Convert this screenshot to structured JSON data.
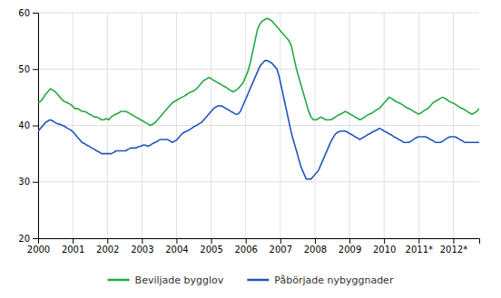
{
  "chart_data": {
    "type": "line",
    "x": [
      2000,
      2000.0704,
      2000.1409,
      2000.2113,
      2000.2818,
      2000.3522,
      2000.4227,
      2000.4931,
      2000.5635,
      2000.634,
      2000.7044,
      2000.7749,
      2000.8453,
      2000.9157,
      2000.9862,
      2001.0566,
      2001.1271,
      2001.1975,
      2001.268,
      2001.3384,
      2001.4088,
      2001.4793,
      2001.5497,
      2001.6202,
      2001.6906,
      2001.761,
      2001.8315,
      2001.9019,
      2001.9724,
      2002.0428,
      2002.1133,
      2002.1837,
      2002.2541,
      2002.3246,
      2002.395,
      2002.4655,
      2002.5359,
      2002.6064,
      2002.6768,
      2002.7472,
      2002.8177,
      2002.8881,
      2002.9586,
      2003.029,
      2003.0994,
      2003.1699,
      2003.2403,
      2003.3108,
      2003.3812,
      2003.4517,
      2003.5221,
      2003.5925,
      2003.663,
      2003.7334,
      2003.8039,
      2003.8743,
      2003.9448,
      2004.0152,
      2004.0856,
      2004.1561,
      2004.2265,
      2004.297,
      2004.3674,
      2004.4378,
      2004.5083,
      2004.5787,
      2004.6492,
      2004.7196,
      2004.7901,
      2004.8605,
      2004.9309,
      2005.0014,
      2005.0718,
      2005.1423,
      2005.2127,
      2005.2831,
      2005.3536,
      2005.424,
      2005.4945,
      2005.5649,
      2005.6354,
      2005.7058,
      2005.7762,
      2005.8467,
      2005.9171,
      2005.9876,
      2006.058,
      2006.1285,
      2006.1989,
      2006.2693,
      2006.3398,
      2006.4102,
      2006.4807,
      2006.5511,
      2006.6215,
      2006.692,
      2006.7624,
      2006.8329,
      2006.9033,
      2006.9738,
      2007.0442,
      2007.1146,
      2007.1851,
      2007.2555,
      2007.326,
      2007.3964,
      2007.4669,
      2007.5373,
      2007.6077,
      2007.6782,
      2007.7486,
      2007.8191,
      2007.8895,
      2007.9599,
      2008.0304,
      2008.1008,
      2008.1713,
      2008.2417,
      2008.3122,
      2008.3826,
      2008.453,
      2008.5235,
      2008.5939,
      2008.6644,
      2008.7348,
      2008.8052,
      2008.8757,
      2008.9461,
      2009.0166,
      2009.087,
      2009.1575,
      2009.2279,
      2009.2983,
      2009.3688,
      2009.4392,
      2009.5097,
      2009.5801,
      2009.6506,
      2009.721,
      2009.7914,
      2009.8619,
      2009.9323,
      2010.0028,
      2010.0732,
      2010.1436,
      2010.2141,
      2010.2845,
      2010.355,
      2010.4254,
      2010.4959,
      2010.5663,
      2010.6367,
      2010.7072,
      2010.7776,
      2010.8481,
      2010.9185,
      2010.989,
      2011.0594,
      2011.1298,
      2011.2003,
      2011.2707,
      2011.3412,
      2011.4116,
      2011.482,
      2011.5525,
      2011.6229,
      2011.6934,
      2011.7638,
      2011.8343,
      2011.9047,
      2011.9751,
      2012.0456,
      2012.116,
      2012.1865,
      2012.2569,
      2012.3273,
      2012.3978,
      2012.4682,
      2012.5387,
      2012.6091,
      2012.6796,
      2012.75
    ],
    "series": [
      {
        "name": "Beviljade bygglov",
        "color": "#22aa44",
        "values": [
          44.0,
          44.3,
          44.8,
          45.5,
          46.0,
          46.5,
          46.3,
          46.0,
          45.5,
          45.0,
          44.5,
          44.2,
          44.0,
          43.8,
          43.5,
          43.0,
          43.0,
          42.8,
          42.5,
          42.5,
          42.3,
          42.0,
          41.8,
          41.5,
          41.5,
          41.3,
          41.0,
          41.0,
          41.2,
          41.0,
          41.5,
          41.8,
          42.0,
          42.2,
          42.5,
          42.5,
          42.5,
          42.3,
          42.0,
          41.8,
          41.5,
          41.3,
          41.0,
          40.8,
          40.5,
          40.3,
          40.0,
          40.2,
          40.5,
          41.0,
          41.5,
          42.0,
          42.5,
          43.0,
          43.5,
          44.0,
          44.3,
          44.5,
          44.8,
          45.0,
          45.2,
          45.5,
          45.8,
          46.0,
          46.2,
          46.5,
          47.0,
          47.5,
          48.0,
          48.2,
          48.5,
          48.3,
          48.0,
          47.8,
          47.5,
          47.3,
          47.0,
          46.8,
          46.5,
          46.2,
          46.0,
          46.2,
          46.5,
          47.0,
          47.5,
          48.5,
          49.5,
          51.0,
          53.0,
          55.0,
          57.0,
          58.0,
          58.5,
          58.8,
          59.0,
          58.8,
          58.5,
          58.0,
          57.5,
          57.0,
          56.5,
          56.0,
          55.5,
          55.0,
          54.0,
          52.0,
          50.0,
          48.5,
          47.0,
          45.5,
          44.0,
          42.5,
          41.5,
          41.0,
          41.0,
          41.2,
          41.5,
          41.3,
          41.0,
          41.0,
          41.0,
          41.2,
          41.5,
          41.8,
          42.0,
          42.2,
          42.5,
          42.3,
          42.0,
          41.8,
          41.5,
          41.3,
          41.0,
          41.2,
          41.5,
          41.8,
          42.0,
          42.2,
          42.5,
          42.8,
          43.0,
          43.5,
          44.0,
          44.5,
          45.0,
          44.8,
          44.5,
          44.2,
          44.0,
          43.8,
          43.5,
          43.2,
          43.0,
          42.8,
          42.5,
          42.3,
          42.0,
          42.2,
          42.5,
          42.8,
          43.0,
          43.5,
          44.0,
          44.3,
          44.5,
          44.8,
          45.0,
          44.8,
          44.5,
          44.2,
          44.0,
          43.8,
          43.5,
          43.2,
          43.0,
          42.8,
          42.5,
          42.2,
          42.0,
          42.2,
          42.5,
          43.0
        ]
      },
      {
        "name": "Påbörjade nybyggnader",
        "color": "#2255bb",
        "values": [
          39.0,
          39.5,
          40.0,
          40.5,
          40.8,
          41.0,
          40.8,
          40.5,
          40.3,
          40.2,
          40.0,
          39.8,
          39.5,
          39.3,
          39.0,
          38.5,
          38.0,
          37.5,
          37.0,
          36.8,
          36.5,
          36.3,
          36.0,
          35.8,
          35.5,
          35.3,
          35.0,
          35.0,
          35.0,
          35.0,
          35.0,
          35.2,
          35.5,
          35.5,
          35.5,
          35.5,
          35.5,
          35.8,
          36.0,
          36.0,
          36.0,
          36.2,
          36.3,
          36.5,
          36.5,
          36.3,
          36.5,
          36.8,
          37.0,
          37.2,
          37.5,
          37.5,
          37.5,
          37.5,
          37.3,
          37.0,
          37.2,
          37.5,
          38.0,
          38.5,
          38.8,
          39.0,
          39.2,
          39.5,
          39.8,
          40.0,
          40.3,
          40.5,
          41.0,
          41.5,
          42.0,
          42.5,
          43.0,
          43.3,
          43.5,
          43.5,
          43.3,
          43.0,
          42.8,
          42.5,
          42.3,
          42.0,
          42.0,
          42.5,
          43.5,
          44.5,
          45.5,
          46.5,
          47.5,
          48.5,
          49.5,
          50.5,
          51.0,
          51.5,
          51.5,
          51.3,
          51.0,
          50.5,
          50.0,
          48.5,
          46.5,
          44.5,
          42.5,
          40.5,
          38.5,
          37.0,
          35.5,
          34.0,
          32.5,
          31.5,
          30.5,
          30.5,
          30.5,
          31.0,
          31.5,
          32.0,
          33.0,
          34.0,
          35.0,
          36.0,
          37.0,
          37.8,
          38.5,
          38.8,
          39.0,
          39.0,
          39.0,
          38.8,
          38.5,
          38.3,
          38.0,
          37.8,
          37.5,
          37.8,
          38.0,
          38.3,
          38.5,
          38.8,
          39.0,
          39.2,
          39.5,
          39.3,
          39.0,
          38.8,
          38.5,
          38.3,
          38.0,
          37.8,
          37.5,
          37.3,
          37.0,
          37.0,
          37.0,
          37.2,
          37.5,
          37.8,
          38.0,
          38.0,
          38.0,
          38.0,
          37.8,
          37.5,
          37.3,
          37.0,
          37.0,
          37.0,
          37.2,
          37.5,
          37.8,
          38.0,
          38.0,
          38.0,
          37.8,
          37.5,
          37.3,
          37.0,
          37.0,
          37.0,
          37.0,
          37.0,
          37.0,
          37.0
        ]
      }
    ],
    "xlim": [
      2000,
      2012.75
    ],
    "xticks": [
      2000,
      2001,
      2002,
      2003,
      2004,
      2005,
      2006,
      2007,
      2008,
      2009,
      2010,
      {
        "value": 2011,
        "label": "2011*"
      },
      {
        "value": 2012,
        "label": "2012*"
      }
    ],
    "ylim": [
      20,
      60
    ],
    "yticks": [
      20,
      30,
      40,
      50,
      60
    ],
    "grid": true,
    "legend": "bottom"
  }
}
